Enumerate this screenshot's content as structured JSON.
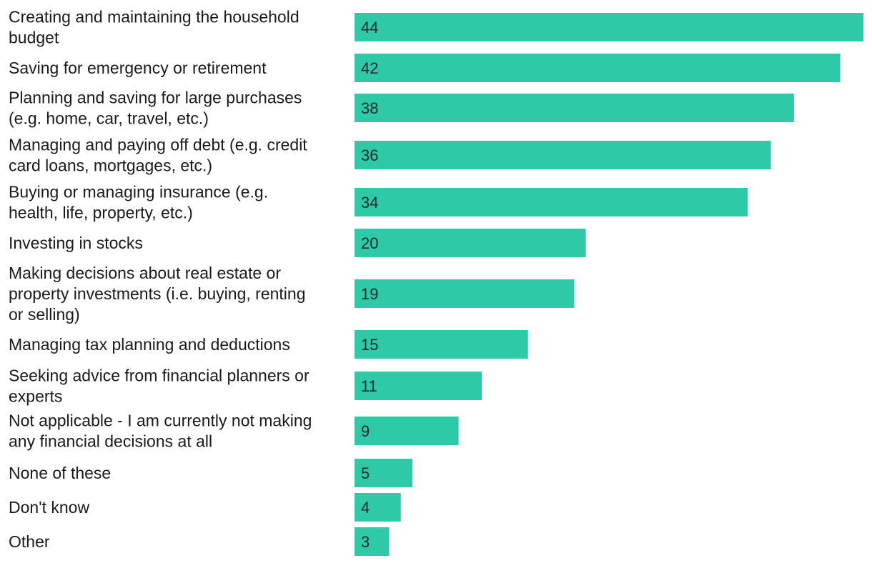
{
  "colors": {
    "bar": "#2ecaa8",
    "label": "#1a1a1a",
    "value_label": "#2b2b2b",
    "background": "#ffffff"
  },
  "chart_data": {
    "type": "bar",
    "orientation": "horizontal",
    "title": "",
    "xlabel": "",
    "ylabel": "",
    "xlim": [
      0,
      44
    ],
    "grid": false,
    "legend": "none",
    "categories": [
      [
        "Creating and maintaining the household",
        "budget"
      ],
      [
        "Saving for emergency or retirement"
      ],
      [
        "Planning and saving for large purchases",
        "(e.g. home, car, travel, etc.)"
      ],
      [
        "Managing and paying off debt (e.g. credit",
        "card loans, mortgages, etc.)"
      ],
      [
        "Buying or managing insurance (e.g.",
        "health, life, property, etc.)"
      ],
      [
        "Investing in stocks"
      ],
      [
        "Making decisions about real estate or",
        "property investments (i.e. buying, renting",
        "or selling)"
      ],
      [
        "Managing tax planning and deductions"
      ],
      [
        "Seeking advice from financial planners or",
        "experts"
      ],
      [
        "Not applicable - I am currently not making",
        "any financial decisions at all"
      ],
      [
        "None of these"
      ],
      [
        "Don't know"
      ],
      [
        "Other"
      ]
    ],
    "values": [
      44,
      42,
      38,
      36,
      34,
      20,
      19,
      15,
      11,
      9,
      5,
      4,
      3
    ]
  }
}
